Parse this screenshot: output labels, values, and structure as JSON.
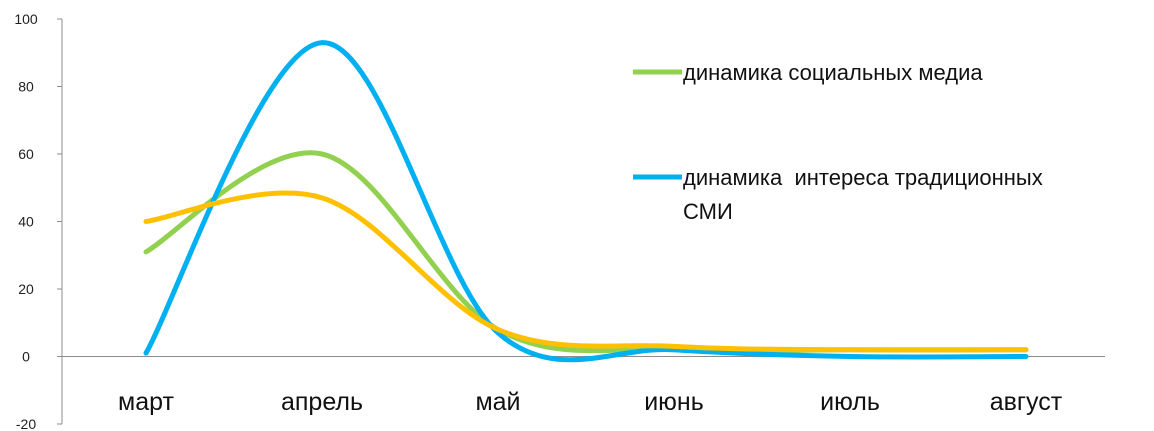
{
  "chart_data": {
    "type": "line",
    "categories": [
      "март",
      "апрель",
      "май",
      "июнь",
      "июль",
      "август"
    ],
    "ylim": [
      -20,
      100
    ],
    "yticks": [
      "100",
      "80",
      "60",
      "40",
      "20",
      "0",
      "-20"
    ],
    "grid": false,
    "legend_position": "right",
    "series": [
      {
        "name": "динамика социальных медиа",
        "color": "#92d050",
        "values": [
          31,
          60,
          8,
          2,
          2,
          2
        ]
      },
      {
        "name": "динамика  интереса традиционных",
        "name_line2": "СМИ",
        "color": "#00b0f0",
        "values": [
          1,
          93,
          7,
          2,
          0,
          0
        ]
      },
      {
        "name": "",
        "color": "#ffc000",
        "values": [
          40,
          47,
          8,
          3,
          2,
          2
        ]
      }
    ]
  }
}
